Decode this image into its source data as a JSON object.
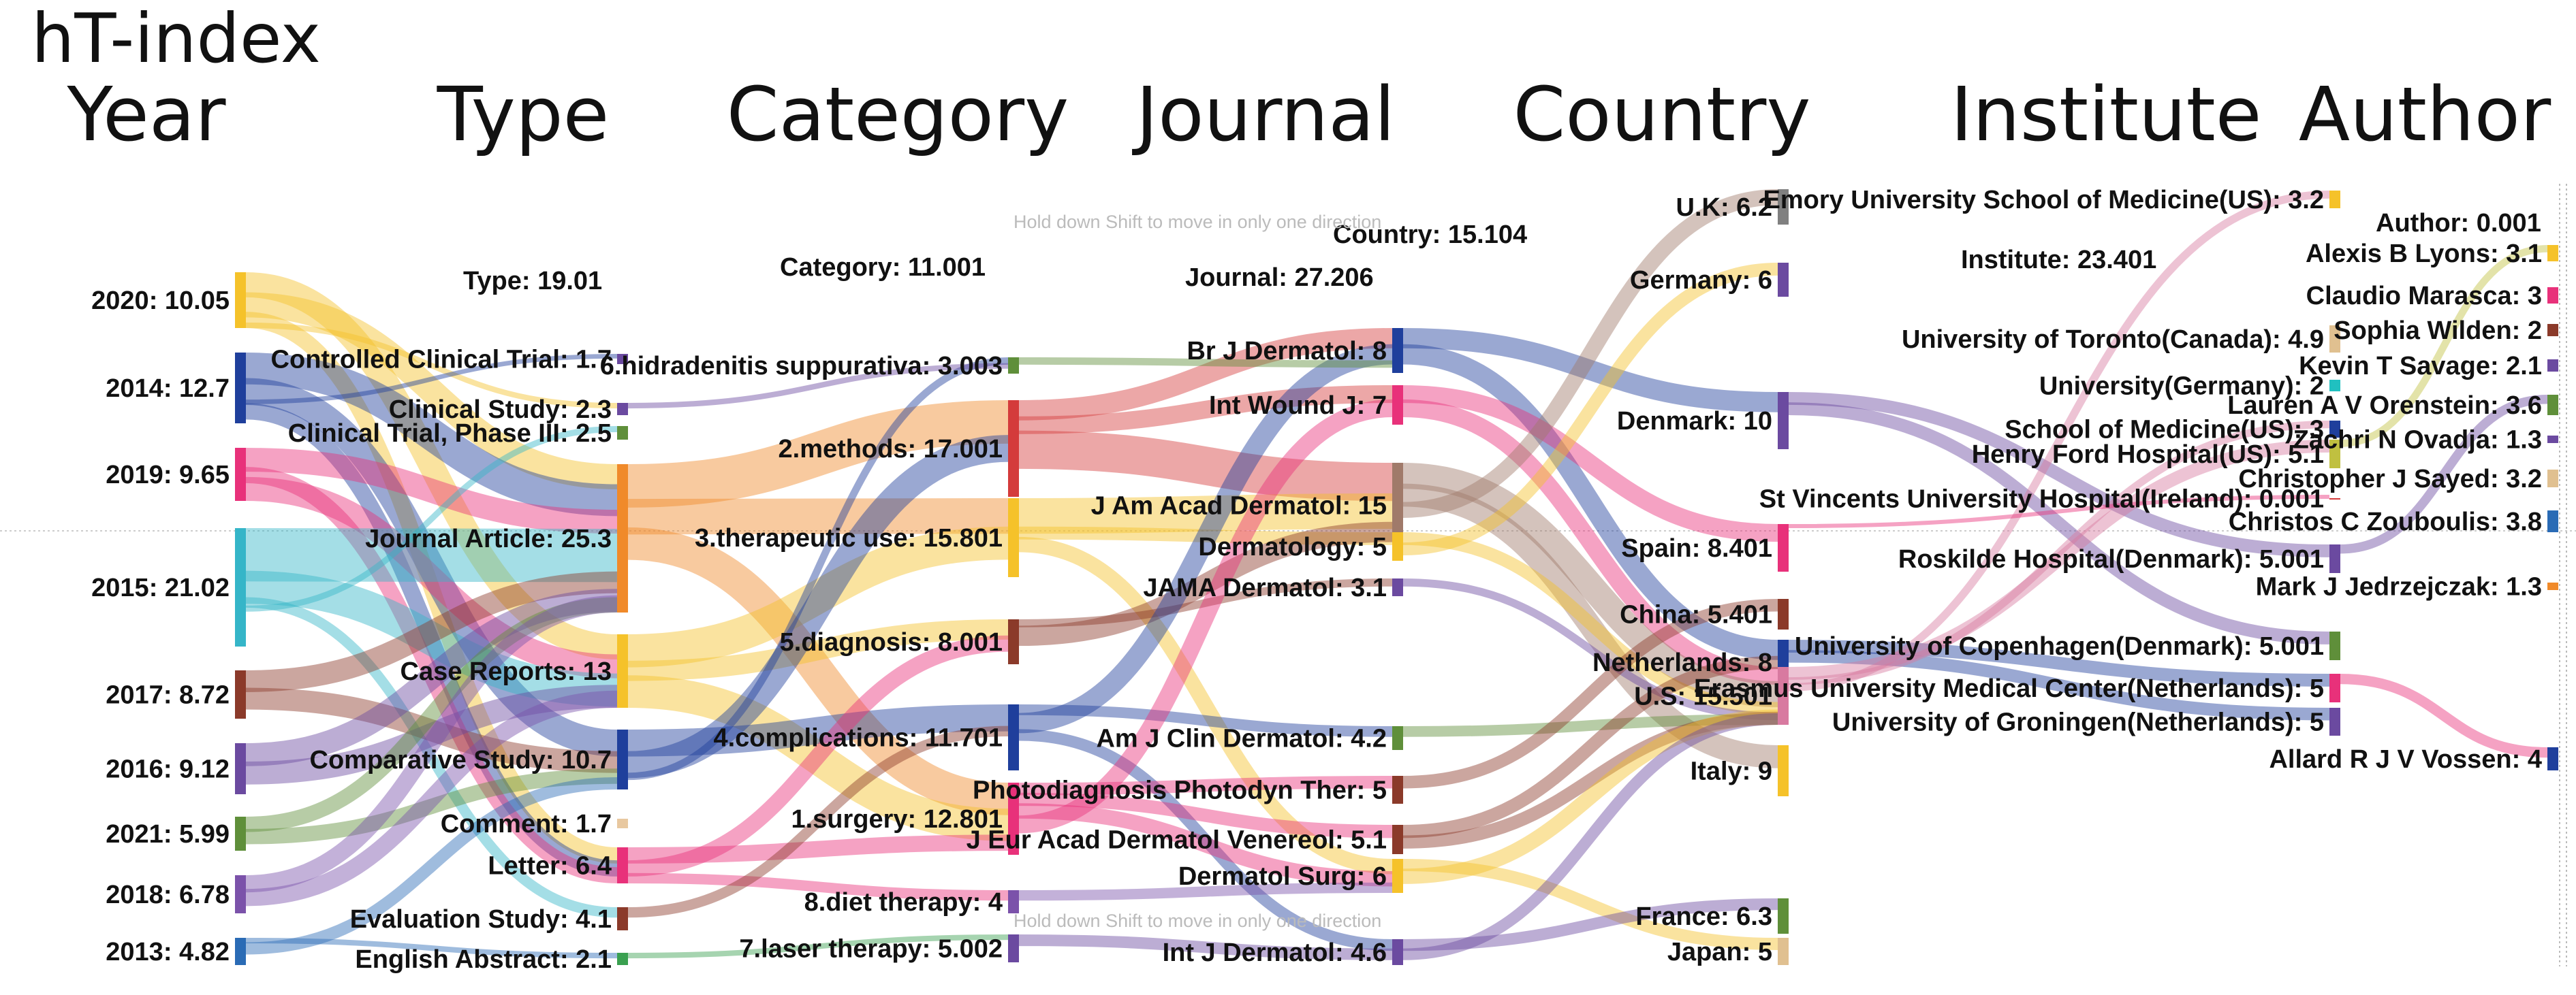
{
  "title": "hT-index",
  "hint_text": "Hold down Shift to move in only one direction",
  "columns": [
    {
      "key": "year",
      "header": "Year",
      "total": ""
    },
    {
      "key": "type",
      "header": "Type",
      "total": "Type: 19.01"
    },
    {
      "key": "category",
      "header": "Category",
      "total": "Category: 11.001"
    },
    {
      "key": "journal",
      "header": "Journal",
      "total": "Journal: 27.206"
    },
    {
      "key": "country",
      "header": "Country",
      "total": "Country: 15.104"
    },
    {
      "key": "institute",
      "header": "Institute",
      "total": "Institute: 23.401"
    },
    {
      "key": "author",
      "header": "Author",
      "total": "Author: 0.001"
    }
  ],
  "nodes": {
    "year": [
      {
        "label": "2020: 10.05",
        "color": "#f5c22a"
      },
      {
        "label": "2014: 12.7",
        "color": "#1f3f9c"
      },
      {
        "label": "2019: 9.65",
        "color": "#e8317a"
      },
      {
        "label": "2015: 21.02",
        "color": "#35b5c8"
      },
      {
        "label": "2017: 8.72",
        "color": "#8b3a2a"
      },
      {
        "label": "2016: 9.12",
        "color": "#6b4aa0"
      },
      {
        "label": "2021: 5.99",
        "color": "#5f8f3a"
      },
      {
        "label": "2018: 6.78",
        "color": "#7b52aa"
      },
      {
        "label": "2013: 4.82",
        "color": "#2a6bb5"
      }
    ],
    "type": [
      {
        "label": "Controlled Clinical Trial: 1.7",
        "color": "#6b4aa0"
      },
      {
        "label": "Clinical Study: 2.3",
        "color": "#6b4aa0"
      },
      {
        "label": "Clinical Trial, Phase III: 2.5",
        "color": "#5f8f3a"
      },
      {
        "label": "Journal Article: 25.3",
        "color": "#f08a2a"
      },
      {
        "label": "Case Reports: 13",
        "color": "#f5c22a"
      },
      {
        "label": "Comparative Study: 10.7",
        "color": "#1f3f9c"
      },
      {
        "label": "Comment: 1.7",
        "color": "#e8c8a0"
      },
      {
        "label": "Letter: 6.4",
        "color": "#e8317a"
      },
      {
        "label": "Evaluation Study: 4.1",
        "color": "#8b3a2a"
      },
      {
        "label": "English Abstract: 2.1",
        "color": "#3aa050"
      }
    ],
    "category": [
      {
        "label": "6.hidradenitis suppurativa: 3.003",
        "color": "#5f8f3a"
      },
      {
        "label": "2.methods: 17.001",
        "color": "#d43b3b"
      },
      {
        "label": "3.therapeutic use: 15.801",
        "color": "#f5c22a"
      },
      {
        "label": "5.diagnosis: 8.001",
        "color": "#8b3a2a"
      },
      {
        "label": "4.complications: 11.701",
        "color": "#1f3f9c"
      },
      {
        "label": "1.surgery: 12.801",
        "color": "#e8317a"
      },
      {
        "label": "8.diet therapy: 4",
        "color": "#7b52aa"
      },
      {
        "label": "7.laser therapy: 5.002",
        "color": "#6b4aa0"
      }
    ],
    "journal": [
      {
        "label": "Br J Dermatol: 8",
        "color": "#1f3f9c"
      },
      {
        "label": "Int Wound J: 7",
        "color": "#e8317a"
      },
      {
        "label": "J Am Acad Dermatol: 15",
        "color": "#a07a6a"
      },
      {
        "label": "Dermatology: 5",
        "color": "#f5c22a"
      },
      {
        "label": "JAMA Dermatol: 3.1",
        "color": "#6b4aa0"
      },
      {
        "label": "Am J Clin Dermatol: 4.2",
        "color": "#5f8f3a"
      },
      {
        "label": "Photodiagnosis Photodyn Ther: 5",
        "color": "#8b3a2a"
      },
      {
        "label": "J Eur Acad Dermatol Venereol: 5.1",
        "color": "#8b3a2a"
      },
      {
        "label": "Dermatol Surg: 6",
        "color": "#f5c22a"
      },
      {
        "label": "Int J Dermatol: 4.6",
        "color": "#6b4aa0"
      }
    ],
    "country": [
      {
        "label": "U.K: 6.2",
        "color": "#808080"
      },
      {
        "label": "Germany: 6",
        "color": "#6b4aa0"
      },
      {
        "label": "Denmark: 10",
        "color": "#6b4aa0"
      },
      {
        "label": "Spain: 8.401",
        "color": "#e8317a"
      },
      {
        "label": "China: 5.401",
        "color": "#8b3a2a"
      },
      {
        "label": "Netherlands: 8",
        "color": "#1f3f9c"
      },
      {
        "label": "U.S: 15.501",
        "color": "#d87aa0"
      },
      {
        "label": "Italy: 9",
        "color": "#f5c22a"
      },
      {
        "label": "France: 6.3",
        "color": "#5f8f3a"
      },
      {
        "label": "Japan: 5",
        "color": "#e0c090"
      }
    ],
    "institute": [
      {
        "label": "Emory University School of Medicine(US): 3.2",
        "color": "#f5c22a"
      },
      {
        "label": "University of Toronto(Canada): 4.9",
        "color": "#e0c090"
      },
      {
        "label": "University(Germany): 2",
        "color": "#20c0c0"
      },
      {
        "label": "School of Medicine(US): 3",
        "color": "#1f3f9c"
      },
      {
        "label": "Henry Ford Hospital(US): 5.1",
        "color": "#c0c040"
      },
      {
        "label": "St Vincents University Hospital(Ireland): 0.001",
        "color": "#d43b3b"
      },
      {
        "label": "Roskilde Hospital(Denmark): 5.001",
        "color": "#6b4aa0"
      },
      {
        "label": "University of Copenhagen(Denmark): 5.001",
        "color": "#5f8f3a"
      },
      {
        "label": "Erasmus University Medical Center(Netherlands): 5",
        "color": "#e8317a"
      },
      {
        "label": "University of Groningen(Netherlands): 5",
        "color": "#6b4aa0"
      }
    ],
    "author": [
      {
        "label": "Alexis B Lyons: 3.1",
        "color": "#f5c22a"
      },
      {
        "label": "Claudio Marasca: 3",
        "color": "#e8317a"
      },
      {
        "label": "Sophia Wilden: 2",
        "color": "#8b3a2a"
      },
      {
        "label": "Kevin T Savage: 2.1",
        "color": "#6b4aa0"
      },
      {
        "label": "Lauren A V Orenstein: 3.6",
        "color": "#5f8f3a"
      },
      {
        "label": "Zachri N Ovadja: 1.3",
        "color": "#6b4aa0"
      },
      {
        "label": "Christopher J Sayed: 3.2",
        "color": "#e0c090"
      },
      {
        "label": "Christos C Zouboulis: 3.8",
        "color": "#2a6bb5"
      },
      {
        "label": "Mark J Jedrzejczak: 1.3",
        "color": "#f08a2a"
      },
      {
        "label": "Allard R J V Vossen: 4",
        "color": "#1f3f9c"
      }
    ]
  },
  "links": [
    [
      "year",
      0,
      "type",
      4
    ],
    [
      "year",
      0,
      "type",
      3
    ],
    [
      "year",
      0,
      "type",
      7
    ],
    [
      "year",
      0,
      "type",
      1
    ],
    [
      "year",
      1,
      "type",
      3
    ],
    [
      "year",
      1,
      "type",
      5
    ],
    [
      "year",
      1,
      "type",
      0
    ],
    [
      "year",
      1,
      "type",
      7
    ],
    [
      "year",
      2,
      "type",
      3
    ],
    [
      "year",
      2,
      "type",
      7
    ],
    [
      "year",
      2,
      "type",
      4
    ],
    [
      "year",
      3,
      "type",
      3
    ],
    [
      "year",
      3,
      "type",
      4
    ],
    [
      "year",
      3,
      "type",
      8
    ],
    [
      "year",
      3,
      "type",
      2
    ],
    [
      "year",
      4,
      "type",
      3
    ],
    [
      "year",
      4,
      "type",
      5
    ],
    [
      "year",
      5,
      "type",
      3
    ],
    [
      "year",
      5,
      "type",
      4
    ],
    [
      "year",
      6,
      "type",
      3
    ],
    [
      "year",
      6,
      "type",
      5
    ],
    [
      "year",
      7,
      "type",
      3
    ],
    [
      "year",
      7,
      "type",
      4
    ],
    [
      "year",
      8,
      "type",
      9
    ],
    [
      "year",
      8,
      "type",
      5
    ],
    [
      "type",
      3,
      "category",
      1
    ],
    [
      "type",
      3,
      "category",
      2
    ],
    [
      "type",
      3,
      "category",
      5
    ],
    [
      "type",
      4,
      "category",
      2
    ],
    [
      "type",
      4,
      "category",
      3
    ],
    [
      "type",
      4,
      "category",
      5
    ],
    [
      "type",
      5,
      "category",
      4
    ],
    [
      "type",
      5,
      "category",
      1
    ],
    [
      "type",
      5,
      "category",
      0
    ],
    [
      "type",
      7,
      "category",
      5
    ],
    [
      "type",
      7,
      "category",
      3
    ],
    [
      "type",
      7,
      "category",
      6
    ],
    [
      "type",
      8,
      "category",
      4
    ],
    [
      "type",
      9,
      "category",
      7
    ],
    [
      "type",
      1,
      "category",
      0
    ],
    [
      "category",
      1,
      "journal",
      0
    ],
    [
      "category",
      1,
      "journal",
      1
    ],
    [
      "category",
      1,
      "journal",
      2
    ],
    [
      "category",
      2,
      "journal",
      2
    ],
    [
      "category",
      2,
      "journal",
      3
    ],
    [
      "category",
      2,
      "journal",
      8
    ],
    [
      "category",
      3,
      "journal",
      4
    ],
    [
      "category",
      3,
      "journal",
      2
    ],
    [
      "category",
      4,
      "journal",
      5
    ],
    [
      "category",
      4,
      "journal",
      0
    ],
    [
      "category",
      4,
      "journal",
      9
    ],
    [
      "category",
      5,
      "journal",
      6
    ],
    [
      "category",
      5,
      "journal",
      7
    ],
    [
      "category",
      5,
      "journal",
      8
    ],
    [
      "category",
      5,
      "journal",
      1
    ],
    [
      "category",
      6,
      "journal",
      8
    ],
    [
      "category",
      7,
      "journal",
      9
    ],
    [
      "category",
      0,
      "journal",
      0
    ],
    [
      "journal",
      0,
      "country",
      2
    ],
    [
      "journal",
      0,
      "country",
      5
    ],
    [
      "journal",
      1,
      "country",
      3
    ],
    [
      "journal",
      1,
      "country",
      6
    ],
    [
      "journal",
      2,
      "country",
      6
    ],
    [
      "journal",
      2,
      "country",
      7
    ],
    [
      "journal",
      2,
      "country",
      0
    ],
    [
      "journal",
      3,
      "country",
      6
    ],
    [
      "journal",
      3,
      "country",
      1
    ],
    [
      "journal",
      4,
      "country",
      6
    ],
    [
      "journal",
      5,
      "country",
      6
    ],
    [
      "journal",
      6,
      "country",
      4
    ],
    [
      "journal",
      7,
      "country",
      5
    ],
    [
      "journal",
      7,
      "country",
      6
    ],
    [
      "journal",
      8,
      "country",
      9
    ],
    [
      "journal",
      8,
      "country",
      6
    ],
    [
      "journal",
      9,
      "country",
      8
    ],
    [
      "journal",
      9,
      "country",
      6
    ],
    [
      "country",
      2,
      "institute",
      6
    ],
    [
      "country",
      2,
      "institute",
      7
    ],
    [
      "country",
      5,
      "institute",
      8
    ],
    [
      "country",
      5,
      "institute",
      9
    ],
    [
      "country",
      6,
      "institute",
      4
    ],
    [
      "country",
      6,
      "institute",
      3
    ],
    [
      "country",
      6,
      "institute",
      0
    ],
    [
      "country",
      3,
      "institute",
      5
    ],
    [
      "institute",
      8,
      "author",
      9
    ],
    [
      "institute",
      4,
      "author",
      0
    ],
    [
      "institute",
      6,
      "author",
      4
    ]
  ]
}
